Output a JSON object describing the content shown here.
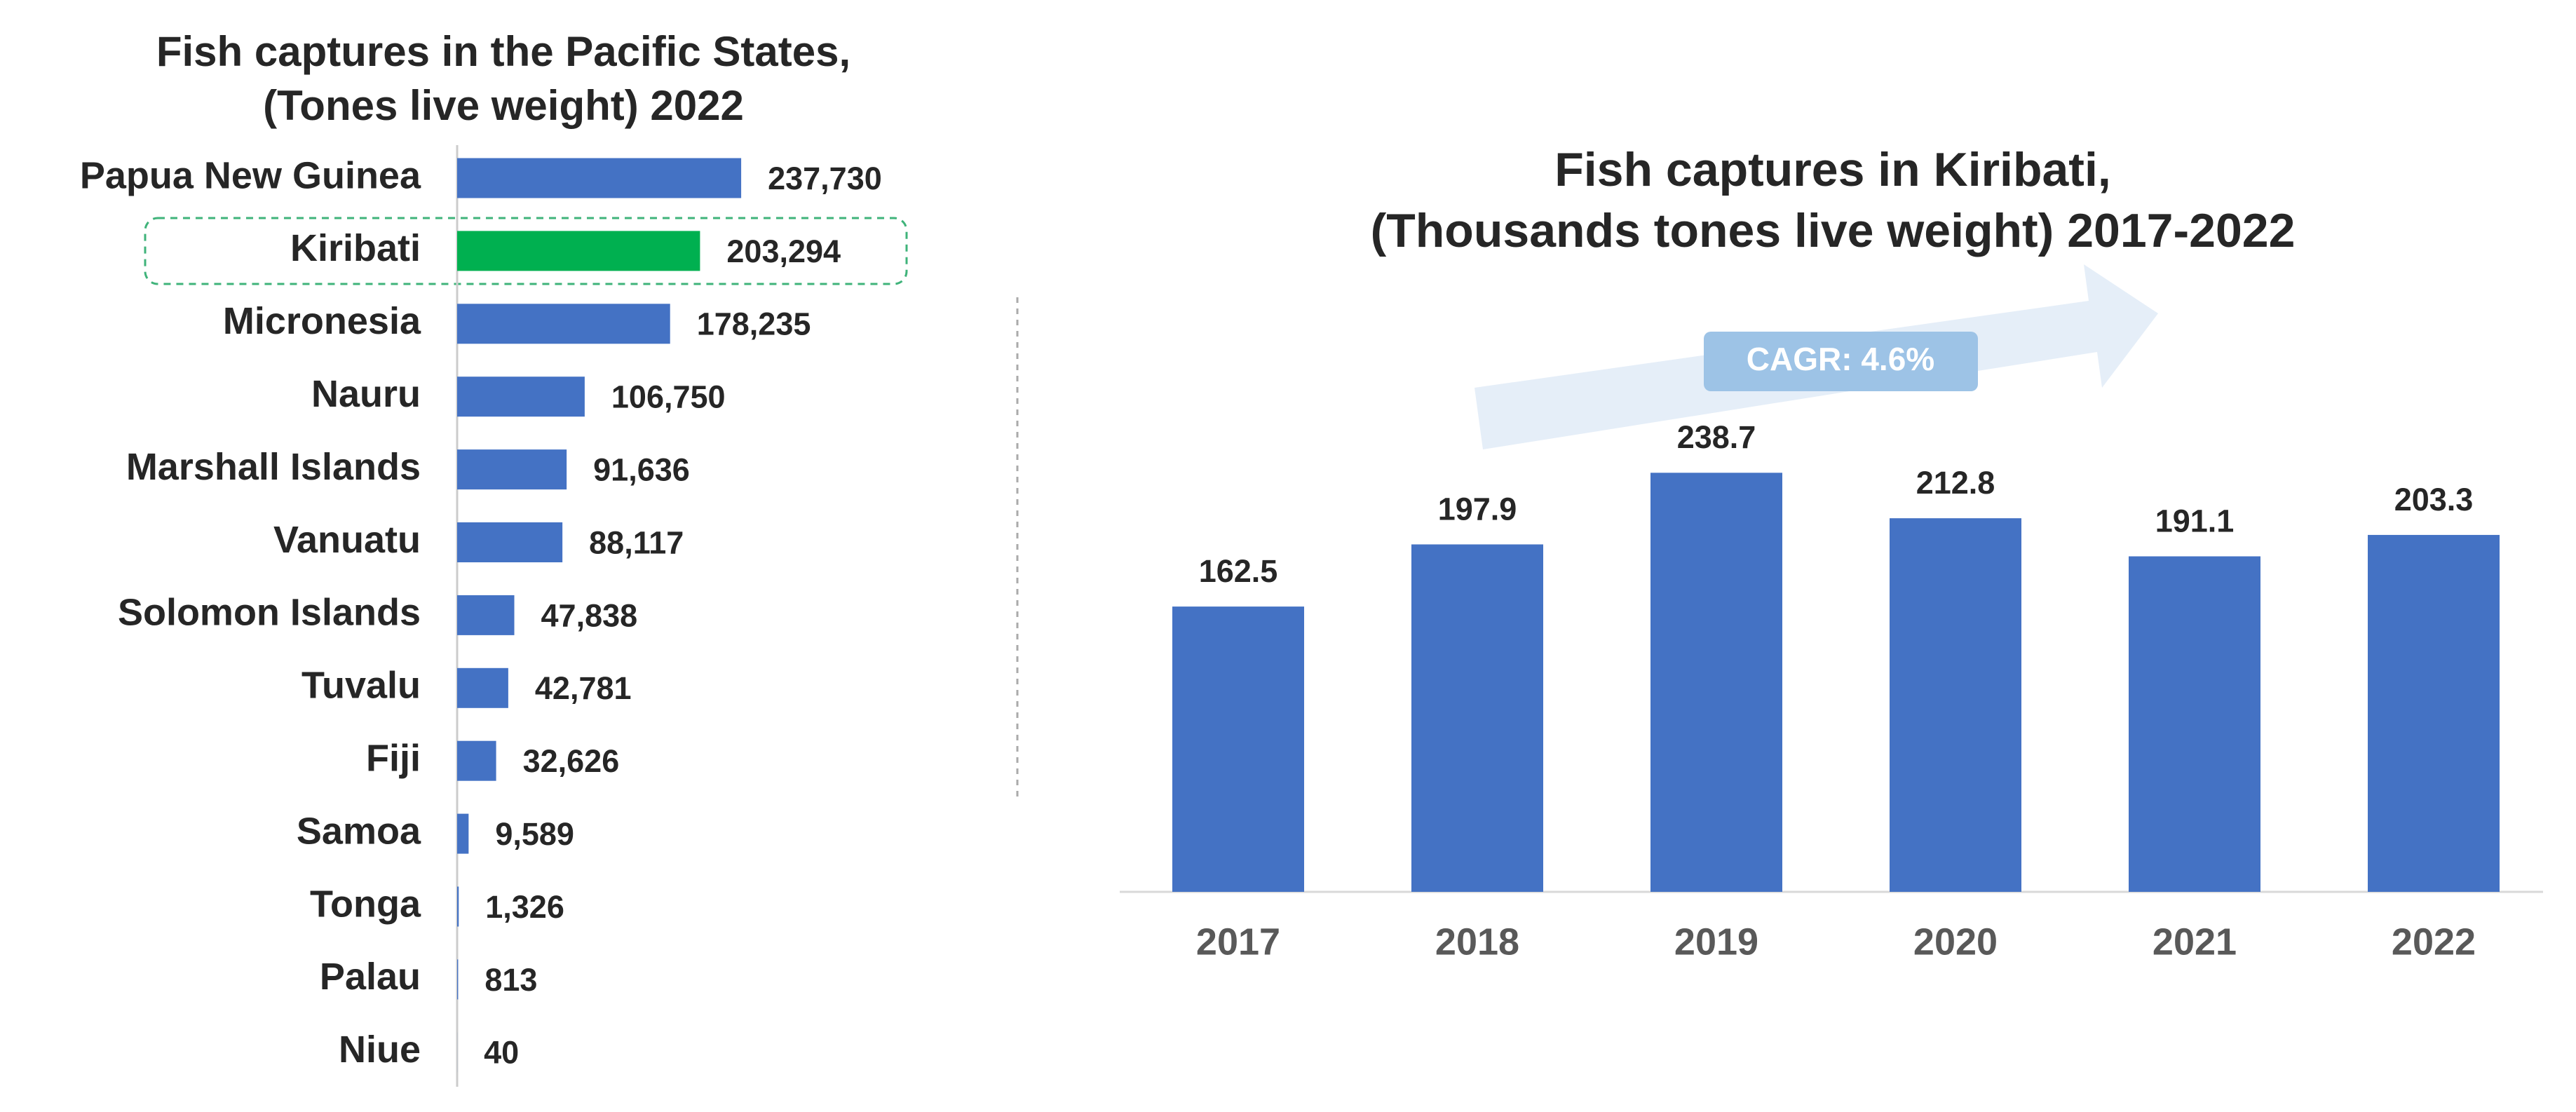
{
  "chart_data": [
    {
      "type": "hbar",
      "title": "Fish captures in the Pacific States,",
      "subtitle": "(Tones live weight) 2022",
      "categories": [
        "Papua New Guinea",
        "Kiribati",
        "Micronesia",
        "Nauru",
        "Marshall Islands",
        "Vanuatu",
        "Solomon Islands",
        "Tuvalu",
        "Fiji",
        "Samoa",
        "Tonga",
        "Palau",
        "Niue"
      ],
      "values": [
        237730,
        203294,
        178235,
        106750,
        91636,
        88117,
        47838,
        42781,
        32626,
        9589,
        1326,
        813,
        40
      ],
      "value_labels": [
        "237,730",
        "203,294",
        "178,235",
        "106,750",
        "91,636",
        "88,117",
        "47,838",
        "42,781",
        "32,626",
        "9,589",
        "1,326",
        "813",
        "40"
      ],
      "colors": [
        "#4472c4",
        "#00b050",
        "#4472c4",
        "#4472c4",
        "#4472c4",
        "#4472c4",
        "#4472c4",
        "#4472c4",
        "#4472c4",
        "#4472c4",
        "#4472c4",
        "#4472c4",
        "#4472c4"
      ],
      "xlim": [
        0,
        250000
      ]
    },
    {
      "type": "bar",
      "title": "Fish captures in Kiribati,",
      "subtitle": "(Thousands tones live weight) 2017-2022",
      "categories": [
        "2017",
        "2018",
        "2019",
        "2020",
        "2021",
        "2022"
      ],
      "values": [
        162.5,
        197.9,
        238.7,
        212.8,
        191.1,
        203.3
      ],
      "color": "#4472c4",
      "ylim": [
        0,
        250
      ],
      "annotation": "CAGR: 4.6%"
    }
  ]
}
